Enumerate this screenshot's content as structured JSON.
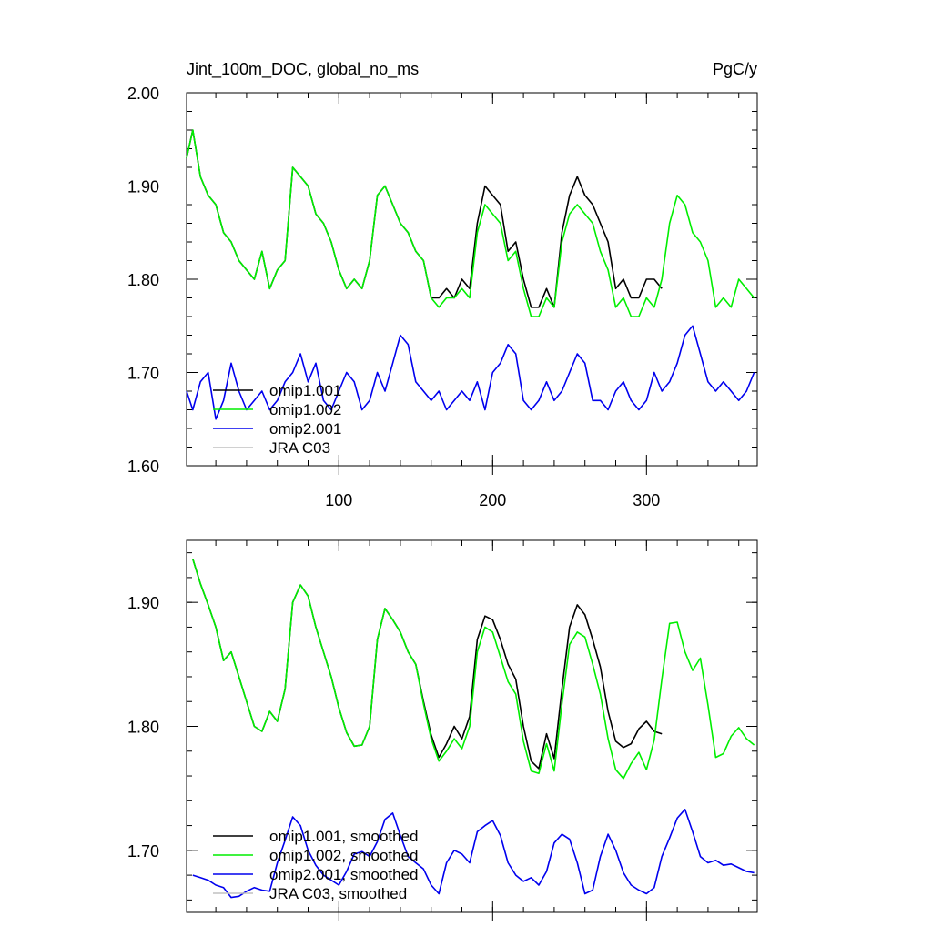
{
  "chart_data": [
    {
      "type": "line",
      "title": "Jint_100m_DOC, global_no_ms",
      "units": "PgC/y",
      "xlabel": "",
      "ylabel": "",
      "xlim": [
        1,
        372
      ],
      "ylim": [
        1.6,
        2.0
      ],
      "xticks": [
        100,
        200,
        300
      ],
      "xtick_labels": [
        "100",
        "200",
        "300"
      ],
      "yticks": [
        1.6,
        1.7,
        1.8,
        1.9,
        2.0
      ],
      "ytick_labels": [
        "1.60",
        "1.70",
        "1.80",
        "1.90",
        "2.00"
      ],
      "legend_position": "lower-left",
      "legend": [
        "omip1.001",
        "omip1.002",
        "omip2.001",
        "JRA C03"
      ],
      "series": [
        {
          "name": "omip1.001",
          "color": "#000000",
          "x": [
            1,
            5,
            10,
            15,
            20,
            25,
            30,
            35,
            40,
            45,
            50,
            55,
            60,
            65,
            70,
            75,
            80,
            85,
            90,
            95,
            100,
            105,
            110,
            115,
            120,
            125,
            130,
            135,
            140,
            145,
            150,
            155,
            160,
            165,
            170,
            175,
            180,
            185,
            190,
            195,
            200,
            205,
            210,
            215,
            220,
            225,
            230,
            235,
            240,
            245,
            250,
            255,
            260,
            265,
            270,
            275,
            280,
            285,
            290,
            295,
            300,
            305,
            310
          ],
          "values": [
            1.93,
            1.96,
            1.91,
            1.89,
            1.88,
            1.85,
            1.84,
            1.82,
            1.81,
            1.8,
            1.83,
            1.79,
            1.81,
            1.82,
            1.92,
            1.91,
            1.9,
            1.87,
            1.86,
            1.84,
            1.81,
            1.79,
            1.8,
            1.79,
            1.82,
            1.89,
            1.9,
            1.88,
            1.86,
            1.85,
            1.83,
            1.82,
            1.78,
            1.78,
            1.79,
            1.78,
            1.8,
            1.79,
            1.86,
            1.9,
            1.89,
            1.88,
            1.83,
            1.84,
            1.8,
            1.77,
            1.77,
            1.79,
            1.77,
            1.85,
            1.89,
            1.91,
            1.89,
            1.88,
            1.86,
            1.84,
            1.79,
            1.8,
            1.78,
            1.78,
            1.8,
            1.8,
            1.79
          ]
        },
        {
          "name": "omip1.002",
          "color": "#00ee00",
          "x": [
            1,
            5,
            10,
            15,
            20,
            25,
            30,
            35,
            40,
            45,
            50,
            55,
            60,
            65,
            70,
            75,
            80,
            85,
            90,
            95,
            100,
            105,
            110,
            115,
            120,
            125,
            130,
            135,
            140,
            145,
            150,
            155,
            160,
            165,
            170,
            175,
            180,
            185,
            190,
            195,
            200,
            205,
            210,
            215,
            220,
            225,
            230,
            235,
            240,
            245,
            250,
            255,
            260,
            265,
            270,
            275,
            280,
            285,
            290,
            295,
            300,
            305,
            310,
            315,
            320,
            325,
            330,
            335,
            340,
            345,
            350,
            355,
            360,
            365,
            370
          ],
          "values": [
            1.93,
            1.96,
            1.91,
            1.89,
            1.88,
            1.85,
            1.84,
            1.82,
            1.81,
            1.8,
            1.83,
            1.79,
            1.81,
            1.82,
            1.92,
            1.91,
            1.9,
            1.87,
            1.86,
            1.84,
            1.81,
            1.79,
            1.8,
            1.79,
            1.82,
            1.89,
            1.9,
            1.88,
            1.86,
            1.85,
            1.83,
            1.82,
            1.78,
            1.77,
            1.78,
            1.78,
            1.79,
            1.78,
            1.85,
            1.88,
            1.87,
            1.86,
            1.82,
            1.83,
            1.79,
            1.76,
            1.76,
            1.78,
            1.77,
            1.84,
            1.87,
            1.88,
            1.87,
            1.86,
            1.83,
            1.81,
            1.77,
            1.78,
            1.76,
            1.76,
            1.78,
            1.77,
            1.8,
            1.86,
            1.89,
            1.88,
            1.85,
            1.84,
            1.82,
            1.77,
            1.78,
            1.77,
            1.8,
            1.79,
            1.78
          ]
        },
        {
          "name": "omip2.001",
          "color": "#0000ee",
          "x": [
            1,
            5,
            10,
            15,
            20,
            25,
            30,
            35,
            40,
            45,
            50,
            55,
            60,
            65,
            70,
            75,
            80,
            85,
            90,
            95,
            100,
            105,
            110,
            115,
            120,
            125,
            130,
            135,
            140,
            145,
            150,
            155,
            160,
            165,
            170,
            175,
            180,
            185,
            190,
            195,
            200,
            205,
            210,
            215,
            220,
            225,
            230,
            235,
            240,
            245,
            250,
            255,
            260,
            265,
            270,
            275,
            280,
            285,
            290,
            295,
            300,
            305,
            310,
            315,
            320,
            325,
            330,
            335,
            340,
            345,
            350,
            355,
            360,
            365,
            370
          ],
          "values": [
            1.68,
            1.66,
            1.69,
            1.7,
            1.65,
            1.67,
            1.71,
            1.68,
            1.66,
            1.67,
            1.68,
            1.66,
            1.67,
            1.69,
            1.7,
            1.72,
            1.69,
            1.71,
            1.67,
            1.66,
            1.68,
            1.7,
            1.69,
            1.66,
            1.67,
            1.7,
            1.68,
            1.71,
            1.74,
            1.73,
            1.69,
            1.68,
            1.67,
            1.68,
            1.66,
            1.67,
            1.68,
            1.67,
            1.69,
            1.66,
            1.7,
            1.71,
            1.73,
            1.72,
            1.67,
            1.66,
            1.67,
            1.69,
            1.67,
            1.68,
            1.7,
            1.72,
            1.71,
            1.67,
            1.67,
            1.66,
            1.68,
            1.69,
            1.67,
            1.66,
            1.67,
            1.7,
            1.68,
            1.69,
            1.71,
            1.74,
            1.75,
            1.72,
            1.69,
            1.68,
            1.69,
            1.68,
            1.67,
            1.68,
            1.7
          ]
        },
        {
          "name": "JRA C03",
          "color": "#c0c0c0",
          "x": [],
          "values": []
        }
      ]
    },
    {
      "type": "line",
      "title": "",
      "xlabel": "",
      "ylabel": "",
      "xlim": [
        1,
        372
      ],
      "ylim": [
        1.65,
        1.95
      ],
      "xticks": [
        100,
        200,
        300
      ],
      "xtick_labels": [
        "",
        "",
        ""
      ],
      "yticks": [
        1.7,
        1.8,
        1.9
      ],
      "ytick_labels": [
        "1.70",
        "1.80",
        "1.90"
      ],
      "legend_position": "lower-left",
      "legend": [
        "omip1.001, smoothed",
        "omip1.002, smoothed",
        "omip2.001, smoothed",
        "JRA C03, smoothed"
      ],
      "series": [
        {
          "name": "omip1.001, smoothed",
          "color": "#000000",
          "x": [
            5,
            10,
            15,
            20,
            25,
            30,
            35,
            40,
            45,
            50,
            55,
            60,
            65,
            70,
            75,
            80,
            85,
            90,
            95,
            100,
            105,
            110,
            115,
            120,
            125,
            130,
            135,
            140,
            145,
            150,
            155,
            160,
            165,
            170,
            175,
            180,
            185,
            190,
            195,
            200,
            205,
            210,
            215,
            220,
            225,
            230,
            235,
            240,
            245,
            250,
            255,
            260,
            265,
            270,
            275,
            280,
            285,
            290,
            295,
            300,
            305,
            310
          ],
          "values": [
            1.935,
            1.915,
            1.898,
            1.88,
            1.853,
            1.86,
            1.84,
            1.82,
            1.8,
            1.796,
            1.812,
            1.804,
            1.83,
            1.9,
            1.914,
            1.905,
            1.88,
            1.86,
            1.84,
            1.815,
            1.795,
            1.784,
            1.785,
            1.8,
            1.87,
            1.895,
            1.886,
            1.876,
            1.86,
            1.85,
            1.82,
            1.793,
            1.775,
            1.786,
            1.8,
            1.79,
            1.808,
            1.87,
            1.889,
            1.886,
            1.87,
            1.85,
            1.838,
            1.8,
            1.772,
            1.766,
            1.794,
            1.774,
            1.83,
            1.88,
            1.898,
            1.89,
            1.87,
            1.848,
            1.812,
            1.788,
            1.783,
            1.786,
            1.798,
            1.804,
            1.796,
            1.794
          ]
        },
        {
          "name": "omip1.002, smoothed",
          "color": "#00ee00",
          "x": [
            5,
            10,
            15,
            20,
            25,
            30,
            35,
            40,
            45,
            50,
            55,
            60,
            65,
            70,
            75,
            80,
            85,
            90,
            95,
            100,
            105,
            110,
            115,
            120,
            125,
            130,
            135,
            140,
            145,
            150,
            155,
            160,
            165,
            170,
            175,
            180,
            185,
            190,
            195,
            200,
            205,
            210,
            215,
            220,
            225,
            230,
            235,
            240,
            245,
            250,
            255,
            260,
            265,
            270,
            275,
            280,
            285,
            290,
            295,
            300,
            305,
            310,
            315,
            320,
            325,
            330,
            335,
            340,
            345,
            350,
            355,
            360,
            365,
            370
          ],
          "values": [
            1.935,
            1.915,
            1.898,
            1.88,
            1.853,
            1.86,
            1.84,
            1.82,
            1.8,
            1.796,
            1.812,
            1.804,
            1.83,
            1.9,
            1.914,
            1.905,
            1.88,
            1.86,
            1.84,
            1.815,
            1.795,
            1.784,
            1.785,
            1.8,
            1.87,
            1.895,
            1.886,
            1.876,
            1.86,
            1.85,
            1.818,
            1.79,
            1.772,
            1.78,
            1.79,
            1.782,
            1.8,
            1.86,
            1.88,
            1.876,
            1.856,
            1.836,
            1.826,
            1.788,
            1.764,
            1.762,
            1.786,
            1.764,
            1.818,
            1.866,
            1.876,
            1.872,
            1.85,
            1.826,
            1.79,
            1.765,
            1.758,
            1.77,
            1.779,
            1.765,
            1.789,
            1.838,
            1.883,
            1.884,
            1.86,
            1.845,
            1.855,
            1.817,
            1.775,
            1.778,
            1.792,
            1.799,
            1.79,
            1.785
          ]
        },
        {
          "name": "omip2.001, smoothed",
          "color": "#0000ee",
          "x": [
            5,
            10,
            15,
            20,
            25,
            30,
            35,
            40,
            45,
            50,
            55,
            60,
            65,
            70,
            75,
            80,
            85,
            90,
            95,
            100,
            105,
            110,
            115,
            120,
            125,
            130,
            135,
            140,
            145,
            150,
            155,
            160,
            165,
            170,
            175,
            180,
            185,
            190,
            195,
            200,
            205,
            210,
            215,
            220,
            225,
            230,
            235,
            240,
            245,
            250,
            255,
            260,
            265,
            270,
            275,
            280,
            285,
            290,
            295,
            300,
            305,
            310,
            315,
            320,
            325,
            330,
            335,
            340,
            345,
            350,
            355,
            360,
            365,
            370
          ],
          "values": [
            1.68,
            1.678,
            1.676,
            1.672,
            1.67,
            1.662,
            1.663,
            1.667,
            1.67,
            1.668,
            1.667,
            1.69,
            1.708,
            1.727,
            1.72,
            1.7,
            1.688,
            1.68,
            1.676,
            1.672,
            1.683,
            1.697,
            1.699,
            1.695,
            1.707,
            1.725,
            1.73,
            1.712,
            1.695,
            1.69,
            1.685,
            1.672,
            1.665,
            1.69,
            1.7,
            1.697,
            1.69,
            1.715,
            1.72,
            1.724,
            1.712,
            1.69,
            1.68,
            1.675,
            1.678,
            1.672,
            1.683,
            1.706,
            1.713,
            1.709,
            1.69,
            1.665,
            1.668,
            1.695,
            1.713,
            1.7,
            1.682,
            1.672,
            1.668,
            1.665,
            1.67,
            1.695,
            1.71,
            1.726,
            1.733,
            1.715,
            1.695,
            1.69,
            1.692,
            1.688,
            1.689,
            1.686,
            1.683,
            1.682
          ]
        },
        {
          "name": "JRA C03, smoothed",
          "color": "#c0c0c0",
          "x": [],
          "values": []
        }
      ]
    }
  ]
}
